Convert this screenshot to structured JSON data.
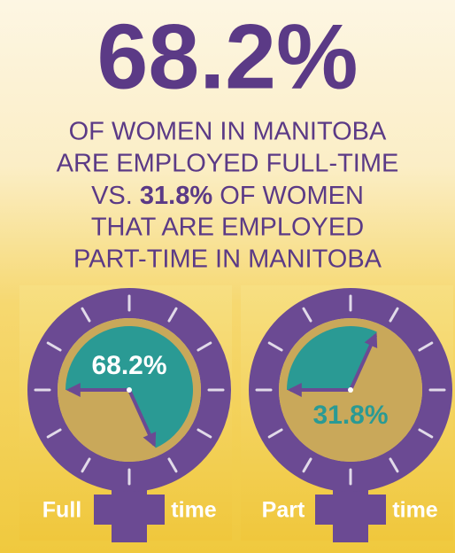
{
  "headline": "68.2%",
  "lines": [
    "OF WOMEN IN MANITOBA",
    "ARE EMPLOYED FULL-TIME",
    "THAT ARE EMPLOYED",
    "PART-TIME IN MANITOBA"
  ],
  "vs_line": {
    "before": "VS.",
    "highlight": "31.8%",
    "after": "OF WOMEN"
  },
  "gauges": [
    {
      "value": 68.2,
      "value_label": "68.2%",
      "label_left": "Full",
      "label_right": "time",
      "sector_color": "#2a9a94",
      "label_color": "#ffffff"
    },
    {
      "value": 31.8,
      "value_label": "31.8%",
      "label_left": "Part",
      "label_right": "time",
      "sector_color": "#2a9a94",
      "label_color": "#2a9a94"
    }
  ]
}
